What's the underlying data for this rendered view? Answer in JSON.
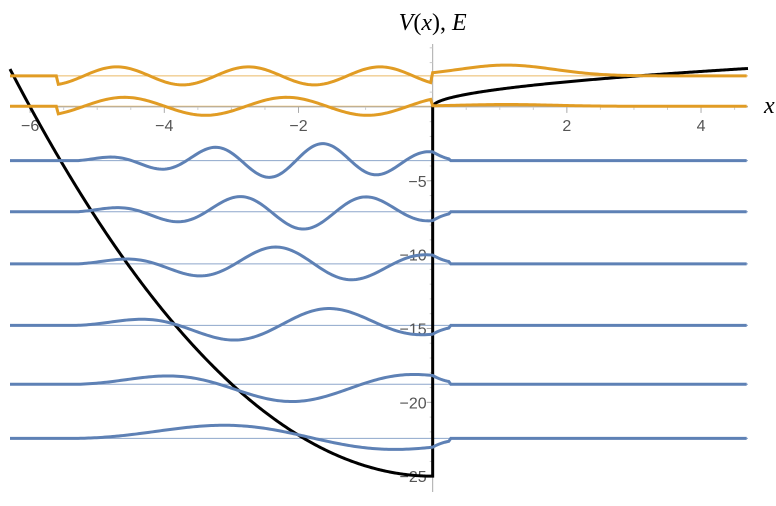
{
  "chart_data": {
    "type": "line",
    "title": "",
    "ylabel": {
      "v": "V",
      "paren_open": "(",
      "x": "x",
      "paren_close": "), ",
      "e": "E"
    },
    "xlabel": "x",
    "xlim": [
      -6.3,
      4.7
    ],
    "ylim": [
      -25.8,
      4.8
    ],
    "x_ticks": [
      {
        "value": -6,
        "label": "−6"
      },
      {
        "value": -4,
        "label": "−4"
      },
      {
        "value": -2,
        "label": "−2"
      },
      {
        "value": 2,
        "label": "2"
      },
      {
        "value": 4,
        "label": "4"
      }
    ],
    "y_ticks": [
      {
        "value": -5,
        "label": "−5"
      },
      {
        "value": -10,
        "label": "−10"
      },
      {
        "value": -15,
        "label": "−15"
      },
      {
        "value": -20,
        "label": "−20"
      },
      {
        "value": -25,
        "label": "−25"
      }
    ],
    "potential": {
      "color": "#000000",
      "well_bottom": -25,
      "well_left_edge": -6,
      "well_wall_x": 0,
      "outside_curve": "sqrt",
      "outside_coefficient": 1.2
    },
    "bound_states": {
      "color": "#5e81b5",
      "energies": [
        -3.64,
        -7.1,
        -10.63,
        -14.79,
        -18.78,
        -22.44
      ],
      "oscillations": [
        5,
        4,
        3,
        2,
        1,
        0
      ],
      "amplitude": 0.9
    },
    "continuum_states": {
      "color": "#e19c24",
      "energies": [
        2.1,
        0.04
      ],
      "amplitude": 0.45
    }
  }
}
